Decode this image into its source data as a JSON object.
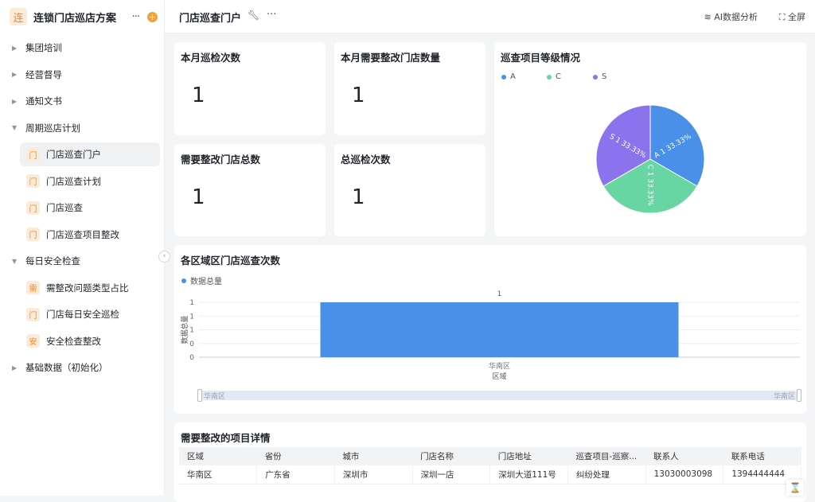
{
  "app": {
    "logo_char": "连",
    "title": "连锁门店巡店方案",
    "more": "···",
    "add": "+"
  },
  "sidebar": {
    "items": [
      {
        "label": "集团培训",
        "type": "group",
        "expanded": false
      },
      {
        "label": "经营督导",
        "type": "group",
        "expanded": false
      },
      {
        "label": "通知文书",
        "type": "group",
        "expanded": false
      },
      {
        "label": "周期巡店计划",
        "type": "group",
        "expanded": true
      },
      {
        "label": "门店巡查门户",
        "type": "page",
        "icon": "门",
        "active": true
      },
      {
        "label": "门店巡查计划",
        "type": "page",
        "icon": "门"
      },
      {
        "label": "门店巡查",
        "type": "page",
        "icon": "门"
      },
      {
        "label": "门店巡查项目整改",
        "type": "page",
        "icon": "门"
      },
      {
        "label": "每日安全检查",
        "type": "group",
        "expanded": true
      },
      {
        "label": "需整改问题类型占比",
        "type": "page",
        "icon": "需"
      },
      {
        "label": "门店每日安全巡检",
        "type": "page",
        "icon": "门"
      },
      {
        "label": "安全检查整改",
        "type": "page",
        "icon": "安"
      },
      {
        "label": "基础数据（初始化）",
        "type": "group",
        "expanded": false
      }
    ]
  },
  "header": {
    "title": "门店巡查门户",
    "more": "···",
    "ai_label": "AI数据分析",
    "fullscreen_label": "全屏"
  },
  "kpis": [
    {
      "title": "本月巡检次数",
      "value": "1"
    },
    {
      "title": "本月需要整改门店数量",
      "value": "1"
    },
    {
      "title": "需要整改门店总数",
      "value": "1"
    },
    {
      "title": "总巡检次数",
      "value": "1"
    }
  ],
  "pie_card": {
    "title": "巡查项目等级情况"
  },
  "bar_card": {
    "title": "各区域区门店巡查次数",
    "slider_start": "华南区",
    "slider_end": "华南区"
  },
  "chart_data": [
    {
      "type": "pie",
      "title": "巡查项目等级情况",
      "legend": "top-left",
      "slices": [
        {
          "label": "A",
          "value": 1,
          "percent": "33.33%",
          "color": "#4a90e8",
          "text": "A 1 33.33%"
        },
        {
          "label": "C",
          "value": 1,
          "percent": "33.33%",
          "color": "#67d6a3",
          "text": "C 1 33.33%"
        },
        {
          "label": "S",
          "value": 1,
          "percent": "33.33%",
          "color": "#8a73ec",
          "text": "S 1 33.33%"
        }
      ]
    },
    {
      "type": "bar",
      "title": "各区域区门店巡查次数",
      "categories": [
        "华南区"
      ],
      "series": [
        {
          "name": "数据总量",
          "values": [
            1
          ],
          "color": "#4a90e8"
        }
      ],
      "data_labels": [
        "1"
      ],
      "xlabel": "区域",
      "ylabel": "数据总量",
      "ylim": [
        0,
        1
      ],
      "ytick_labels": [
        "0",
        "0",
        "1",
        "1",
        "1"
      ],
      "grid": true,
      "legend": "top-left"
    }
  ],
  "table": {
    "title": "需要整改的项目详情",
    "columns": [
      "区域",
      "省份",
      "城市",
      "门店名称",
      "门店地址",
      "巡查项目-巡察...",
      "联系人",
      "联系电话"
    ],
    "rows": [
      [
        "华南区",
        "广东省",
        "深圳市",
        "深圳一店",
        "深圳大道111号",
        "纠纷处理",
        "13030003098",
        "1394444444"
      ]
    ]
  }
}
